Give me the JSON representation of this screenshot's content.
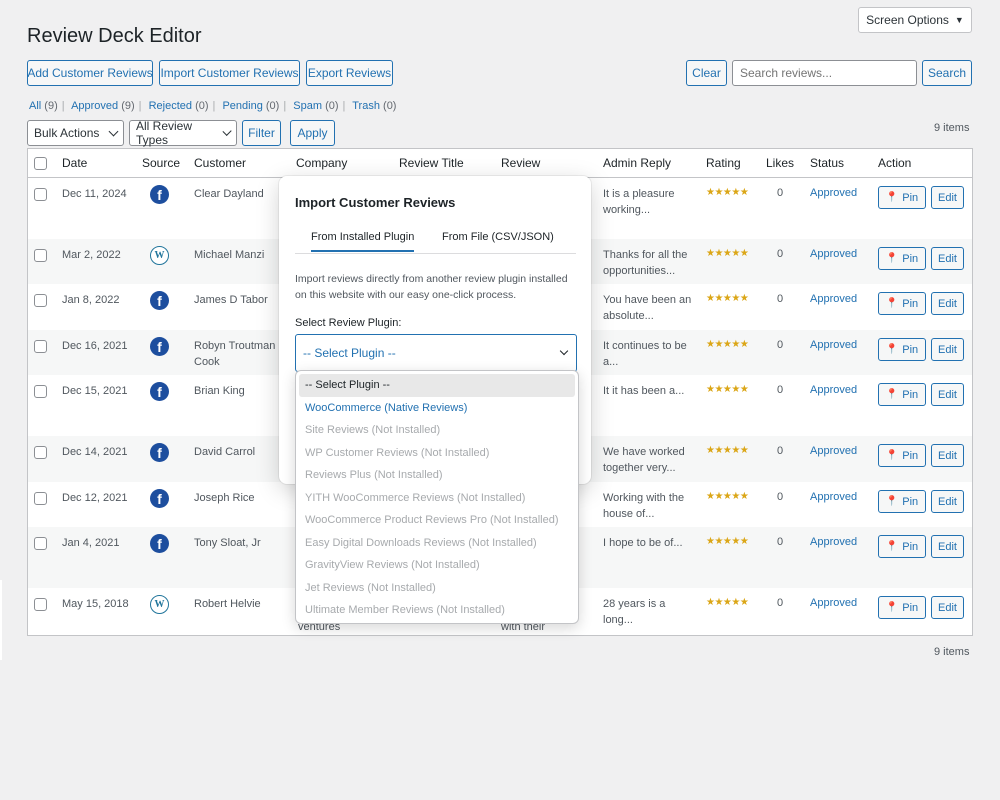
{
  "header": {
    "title": "Review Deck Editor",
    "screen_options": "Screen Options"
  },
  "toolbar": {
    "add": "Add Customer Reviews",
    "import": "Import Customer Reviews",
    "export": "Export Reviews",
    "clear": "Clear",
    "search_placeholder": "Search reviews...",
    "search": "Search"
  },
  "filters": {
    "views": [
      {
        "label": "All",
        "count": "(9)"
      },
      {
        "label": "Approved",
        "count": "(9)"
      },
      {
        "label": "Rejected",
        "count": "(0)"
      },
      {
        "label": "Pending",
        "count": "(0)"
      },
      {
        "label": "Spam",
        "count": "(0)"
      },
      {
        "label": "Trash",
        "count": "(0)"
      }
    ],
    "bulk_actions": "Bulk Actions",
    "review_types": "All Review Types",
    "filter": "Filter",
    "apply": "Apply",
    "items_count": "9 items"
  },
  "table": {
    "columns": [
      "Date",
      "Source",
      "Customer",
      "Company",
      "Review Title",
      "Review",
      "Admin Reply",
      "Rating",
      "Likes",
      "Status",
      "Action"
    ],
    "pin_label": "Pin",
    "edit_label": "Edit",
    "rows": [
      {
        "date": "Dec 11, 2024",
        "source": "facebook",
        "customer": "Clear Dayland",
        "reply": "It is a pleasure working...",
        "rating": "★★★★★",
        "likes": "0",
        "status": "Approved"
      },
      {
        "date": "Mar 2, 2022",
        "source": "wordpress",
        "customer": "Michael Manzi",
        "reply": "Thanks for all the opportunities...",
        "rating": "★★★★★",
        "likes": "0",
        "status": "Approved"
      },
      {
        "date": "Jan 8, 2022",
        "source": "facebook",
        "customer": "James D Tabor",
        "reply": "You have been an absolute...",
        "rating": "★★★★★",
        "likes": "0",
        "status": "Approved"
      },
      {
        "date": "Dec 16, 2021",
        "source": "facebook",
        "customer": "Robyn Troutman Cook",
        "reply": "It continues to be a...",
        "rating": "★★★★★",
        "likes": "0",
        "status": "Approved"
      },
      {
        "date": "Dec 15, 2021",
        "source": "facebook",
        "customer": "Brian King",
        "reply": "It it has been a...",
        "rating": "★★★★★",
        "likes": "0",
        "status": "Approved"
      },
      {
        "date": "Dec 14, 2021",
        "source": "facebook",
        "customer": "David Carrol",
        "reply": "We have worked together very...",
        "rating": "★★★★★",
        "likes": "0",
        "status": "Approved"
      },
      {
        "date": "Dec 12, 2021",
        "source": "facebook",
        "customer": "Joseph Rice",
        "reply": "Working with the house of...",
        "rating": "★★★★★",
        "likes": "0",
        "status": "Approved"
      },
      {
        "date": "Jan 4, 2021",
        "source": "facebook",
        "customer": "Tony Sloat, Jr",
        "reply": "I hope to be of...",
        "rating": "★★★★★",
        "likes": "0",
        "status": "Approved"
      },
      {
        "date": "May 15, 2018",
        "source": "wordpress",
        "customer": "Robert Helvie",
        "reply": "28 years is a long...",
        "rating": "★★★★★",
        "likes": "0",
        "status": "Approved"
      }
    ],
    "behind_modal_text": {
      "company_fragment": "ventures",
      "review_fragment": "with their"
    }
  },
  "modal": {
    "title": "Import Customer Reviews",
    "tab_installed": "From Installed Plugin",
    "tab_file": "From File (CSV/JSON)",
    "description": "Import reviews directly from another review plugin installed on this website with our easy one-click process.",
    "field_label": "Select Review Plugin:",
    "selected": "-- Select Plugin --",
    "options": [
      "-- Select Plugin --",
      "WooCommerce (Native Reviews)",
      "Site Reviews (Not Installed)",
      "WP Customer Reviews (Not Installed)",
      "Reviews Plus (Not Installed)",
      "YITH WooCommerce Reviews (Not Installed)",
      "WooCommerce Product Reviews Pro (Not Installed)",
      "Easy Digital Downloads Reviews (Not Installed)",
      "GravityView Reviews (Not Installed)",
      "Jet Reviews (Not Installed)",
      "Ultimate Member Reviews (Not Installed)"
    ]
  },
  "colors": {
    "accent": "#2271b1",
    "star": "#dba617",
    "facebook": "#1d4e9e",
    "wordpress": "#21759b"
  }
}
